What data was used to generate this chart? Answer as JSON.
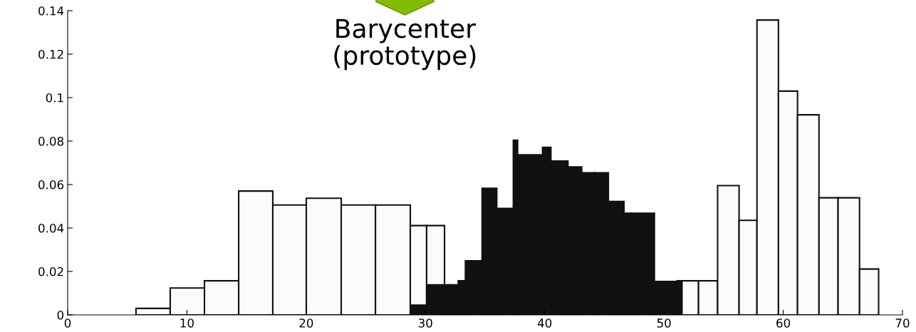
{
  "chart_data": {
    "type": "histogram",
    "annotations": [
      "Barycenter\n(prototype)"
    ],
    "bins": [
      5.73,
      8.6,
      11.47,
      14.34,
      17.2,
      20.01,
      22.94,
      25.81,
      28.73,
      30.1,
      31.6,
      32.0,
      32.75,
      33.35,
      34.75,
      35.98,
      37.37,
      37.73,
      39.82,
      40.52,
      41.95,
      43.1,
      44.2,
      45.34,
      46.65,
      47.25,
      49.2,
      51.1,
      51.5,
      52.9,
      54.5,
      56.3,
      57.8,
      59.6,
      61.2,
      63.0,
      64.6,
      66.4,
      68.0
    ],
    "series": [
      {
        "color": "#fbfbfb",
        "values": [
          0.003,
          0.0124,
          0.0157,
          0.057,
          0.0506,
          0.0537,
          0.0506,
          0.0506,
          0.0411,
          0.0411,
          null,
          null,
          null,
          null,
          null,
          null,
          null,
          null,
          null,
          null,
          null,
          null,
          null,
          null,
          null,
          null,
          null,
          null,
          null,
          null,
          null,
          null,
          null,
          null,
          null,
          null,
          null,
          null
        ]
      },
      {
        "color": "#fbfbfb",
        "values": [
          null,
          null,
          null,
          null,
          null,
          null,
          null,
          null,
          null,
          null,
          null,
          null,
          null,
          null,
          null,
          null,
          null,
          null,
          null,
          null,
          null,
          null,
          null,
          null,
          null,
          null,
          null,
          null,
          0.0157,
          0.0157,
          0.0595,
          0.0435,
          0.1357,
          0.103,
          0.0921,
          0.0539,
          0.0539,
          0.0211
        ]
      },
      {
        "color": "#111111",
        "values": [
          null,
          null,
          null,
          null,
          null,
          null,
          null,
          null,
          0.0045,
          0.0138,
          0.0138,
          0.0138,
          0.0157,
          0.0249,
          0.0583,
          0.049,
          0.0804,
          0.0737,
          0.0771,
          0.0708,
          0.0681,
          0.0654,
          0.0654,
          0.0522,
          0.0468,
          0.0468,
          0.0154,
          0.0157,
          null,
          null,
          null,
          null,
          null,
          null,
          null,
          null,
          null,
          null
        ]
      }
    ],
    "xlim": [
      0,
      70
    ],
    "xticks": [
      0,
      10,
      20,
      30,
      40,
      50,
      60,
      70
    ],
    "ylim": [
      0,
      0.14
    ],
    "yticks": [
      0,
      0.02,
      0.04,
      0.06,
      0.08,
      0.1,
      0.12,
      0.14
    ],
    "grid": false
  }
}
